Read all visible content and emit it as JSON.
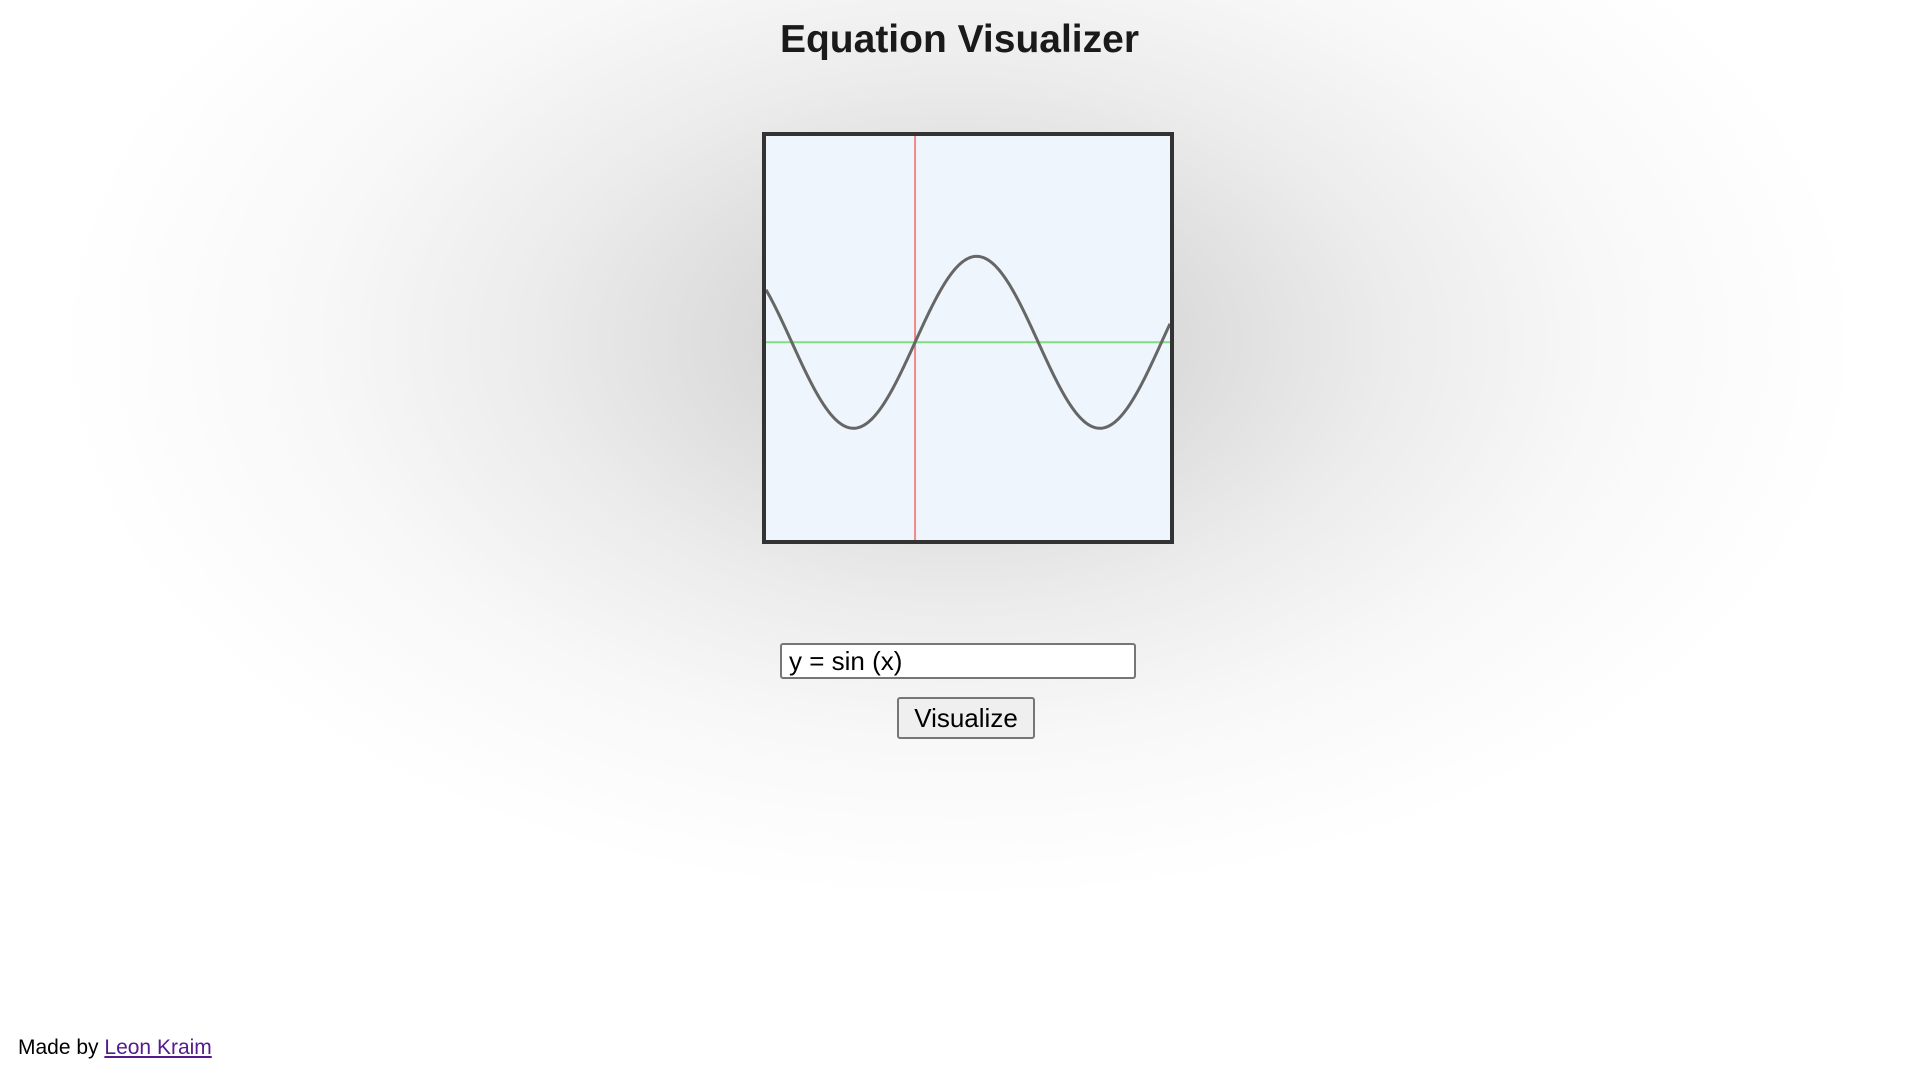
{
  "page": {
    "title": "Equation Visualizer"
  },
  "graph": {
    "equation": "y = sin (x)",
    "x_range": [
      -3.8,
      6.5
    ],
    "y_range": [
      -4.6,
      4.8
    ],
    "colors": {
      "background": "#eef5fc",
      "x_axis": "#7ee07e",
      "y_axis": "#f08a8a",
      "curve": "#666666",
      "border": "#333333"
    }
  },
  "input": {
    "value": "y = sin (x)"
  },
  "button": {
    "label": "Visualize"
  },
  "footer": {
    "prefix": "Made by",
    "author_link": "Leon Kraim"
  }
}
